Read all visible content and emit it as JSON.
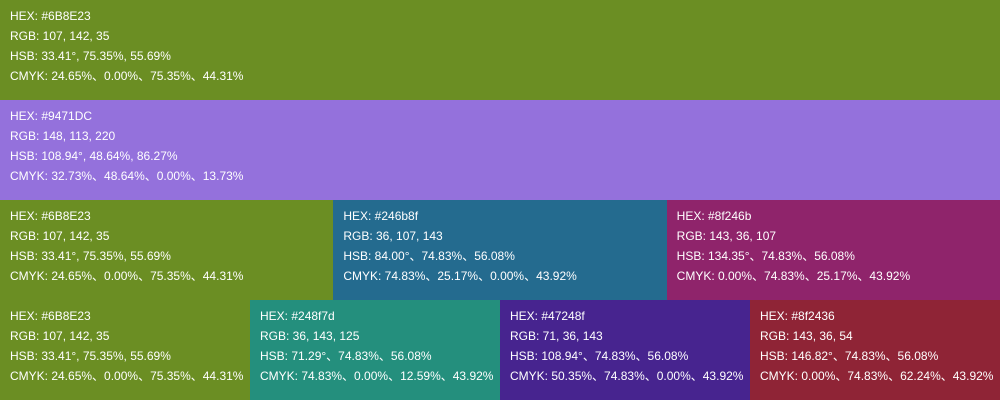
{
  "rows": [
    {
      "swatches": [
        {
          "color": "#6B8E23",
          "lines": [
            "HEX: #6B8E23",
            "RGB: 107, 142, 35",
            "HSB: 33.41°, 75.35%, 55.69%",
            "CMYK: 24.65%、0.00%、75.35%、44.31%"
          ]
        }
      ]
    },
    {
      "swatches": [
        {
          "color": "#9471DC",
          "lines": [
            "HEX: #9471DC",
            "RGB: 148, 113, 220",
            "HSB: 108.94°, 48.64%, 86.27%",
            "CMYK: 32.73%、48.64%、0.00%、13.73%"
          ]
        }
      ]
    },
    {
      "swatches": [
        {
          "color": "#6B8E23",
          "lines": [
            "HEX: #6B8E23",
            "RGB: 107, 142, 35",
            "HSB: 33.41°, 75.35%, 55.69%",
            "CMYK: 24.65%、0.00%、75.35%、44.31%"
          ]
        },
        {
          "color": "#246b8f",
          "lines": [
            "HEX: #246b8f",
            "RGB: 36, 107, 143",
            "HSB: 84.00°、74.83%、56.08%",
            "CMYK: 74.83%、25.17%、0.00%、43.92%"
          ]
        },
        {
          "color": "#8f246b",
          "lines": [
            "HEX: #8f246b",
            "RGB: 143, 36, 107",
            "HSB: 134.35°、74.83%、56.08%",
            "CMYK: 0.00%、74.83%、25.17%、43.92%"
          ]
        }
      ]
    },
    {
      "swatches": [
        {
          "color": "#6B8E23",
          "lines": [
            "HEX: #6B8E23",
            "RGB: 107, 142, 35",
            "HSB: 33.41°, 75.35%, 55.69%",
            "CMYK: 24.65%、0.00%、75.35%、44.31%"
          ]
        },
        {
          "color": "#248f7d",
          "lines": [
            "HEX: #248f7d",
            "RGB: 36, 143, 125",
            "HSB: 71.29°、74.83%、56.08%",
            "CMYK: 74.83%、0.00%、12.59%、43.92%"
          ]
        },
        {
          "color": "#47248f",
          "lines": [
            "HEX: #47248f",
            "RGB: 71, 36, 143",
            "HSB: 108.94°、74.83%、56.08%",
            "CMYK: 50.35%、74.83%、0.00%、43.92%"
          ]
        },
        {
          "color": "#8f2436",
          "lines": [
            "HEX: #8f2436",
            "RGB: 143, 36, 54",
            "HSB: 146.82°、74.83%、56.08%",
            "CMYK: 0.00%、74.83%、62.24%、43.92%"
          ]
        }
      ]
    }
  ]
}
